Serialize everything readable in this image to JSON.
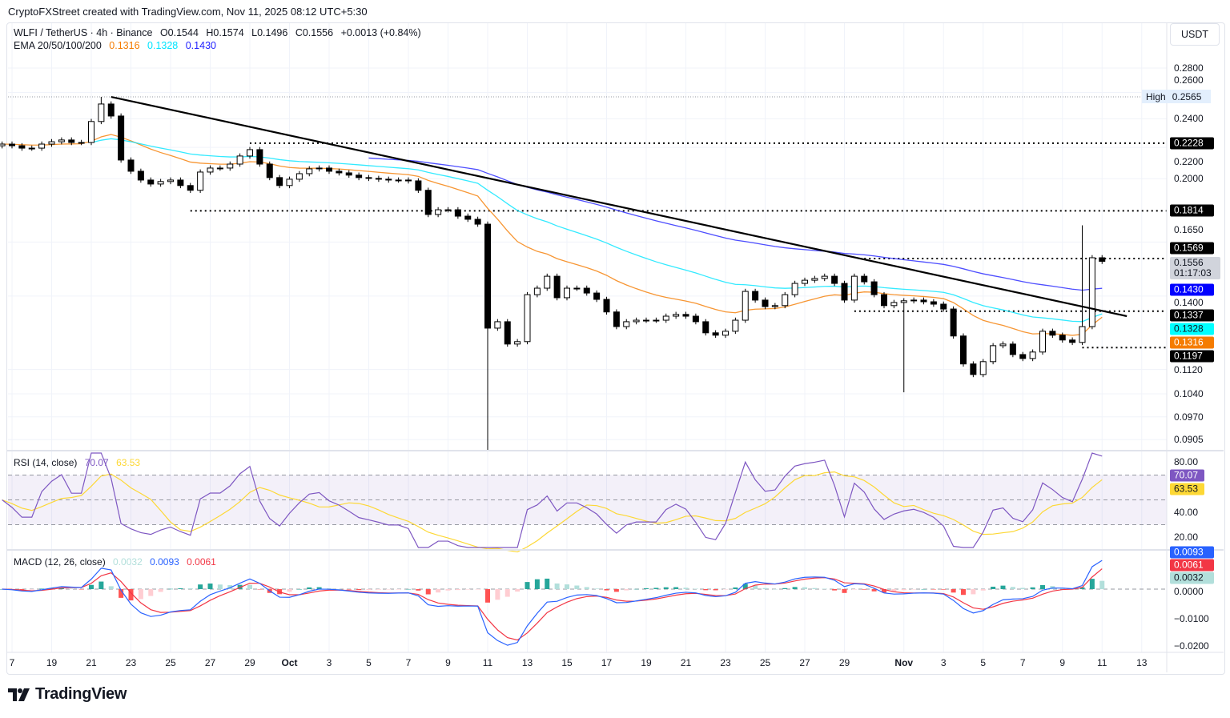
{
  "header": {
    "attribution": "CryptoFXStreet created with TradingView.com, Nov 11, 2025 08:12 UTC+5:30"
  },
  "legend": {
    "symbol": "WLFI / TetherUS · 4h · Binance",
    "open": "O0.1544",
    "high": "H0.1574",
    "low": "L0.1496",
    "close": "C0.1556",
    "change": "+0.0013 (+0.84%)",
    "ema_label": "EMA 20/50/100/200",
    "ema_values": [
      {
        "value": "0.1316",
        "color": "#f57c00"
      },
      {
        "value": "0.1328",
        "color": "#00e5ff"
      },
      {
        "value": "0.1430",
        "color": "#2222ff"
      }
    ]
  },
  "currency_button": "USDT",
  "price_axis": {
    "scale": "log",
    "ticks": [
      "0.2800",
      "0.2600",
      "0.2400",
      "0.2200",
      "0.2000",
      "0.1650",
      "0.1400",
      "0.1120",
      "0.1040",
      "0.0970",
      "0.0905"
    ],
    "high_marker": {
      "label": "High",
      "value": "0.2565"
    },
    "markers": [
      {
        "text": "0.2228",
        "bg": "#000000",
        "fg": "#ffffff"
      },
      {
        "text": "0.1814",
        "bg": "#000000",
        "fg": "#ffffff"
      },
      {
        "text": "0.1569",
        "bg": "#000000",
        "fg": "#ffffff"
      },
      {
        "text": "0.1556",
        "sub": "01:17:03",
        "bg": "#d1d4dc",
        "fg": "#131722"
      },
      {
        "text": "0.1430",
        "bg": "#0000ff",
        "fg": "#ffffff"
      },
      {
        "text": "0.1337",
        "bg": "#000000",
        "fg": "#ffffff"
      },
      {
        "text": "0.1328",
        "bg": "#00ffff",
        "fg": "#131722"
      },
      {
        "text": "0.1316",
        "bg": "#f57c00",
        "fg": "#ffffff"
      },
      {
        "text": "0.1197",
        "bg": "#000000",
        "fg": "#ffffff"
      }
    ]
  },
  "rsi": {
    "label": "RSI (14, close)",
    "value": "70.07",
    "ma_value": "63.53",
    "line_color": "#7e57c2",
    "ma_color": "#fdd835",
    "ticks": [
      "80.00",
      "40.00",
      "20.00"
    ],
    "bands": [
      70,
      50,
      30
    ]
  },
  "macd": {
    "label": "MACD (12, 26, close)",
    "hist_value": "0.0032",
    "macd_value": "0.0093",
    "signal_value": "0.0061",
    "macd_color": "#2962ff",
    "signal_color": "#f23645",
    "hist_up": "#26a69a",
    "hist_up_light": "#b2dfdb",
    "hist_down": "#ff5252",
    "hist_down_light": "#ffcdd2",
    "ticks": [
      "0.0000",
      "−0.0100",
      "−0.0200"
    ]
  },
  "time_axis": {
    "labels": [
      {
        "text": "7",
        "date": "2025-09-17"
      },
      {
        "text": "19",
        "date": "2025-09-19"
      },
      {
        "text": "21",
        "date": "2025-09-21"
      },
      {
        "text": "23",
        "date": "2025-09-23"
      },
      {
        "text": "25",
        "date": "2025-09-25"
      },
      {
        "text": "27",
        "date": "2025-09-27"
      },
      {
        "text": "29",
        "date": "2025-09-29"
      },
      {
        "text": "Oct",
        "date": "2025-10-01",
        "bold": true
      },
      {
        "text": "3",
        "date": "2025-10-03"
      },
      {
        "text": "5",
        "date": "2025-10-05"
      },
      {
        "text": "7",
        "date": "2025-10-07"
      },
      {
        "text": "9",
        "date": "2025-10-09"
      },
      {
        "text": "11",
        "date": "2025-10-11"
      },
      {
        "text": "13",
        "date": "2025-10-13"
      },
      {
        "text": "15",
        "date": "2025-10-15"
      },
      {
        "text": "17",
        "date": "2025-10-17"
      },
      {
        "text": "19",
        "date": "2025-10-19"
      },
      {
        "text": "21",
        "date": "2025-10-21"
      },
      {
        "text": "23",
        "date": "2025-10-23"
      },
      {
        "text": "25",
        "date": "2025-10-25"
      },
      {
        "text": "27",
        "date": "2025-10-27"
      },
      {
        "text": "29",
        "date": "2025-10-29"
      },
      {
        "text": "Nov",
        "date": "2025-11-01",
        "bold": true
      },
      {
        "text": "3",
        "date": "2025-11-03"
      },
      {
        "text": "5",
        "date": "2025-11-05"
      },
      {
        "text": "7",
        "date": "2025-11-07"
      },
      {
        "text": "9",
        "date": "2025-11-09"
      },
      {
        "text": "11",
        "date": "2025-11-11"
      },
      {
        "text": "13",
        "date": "2025-11-13"
      }
    ]
  },
  "logo": {
    "text": "TradingView"
  },
  "chart_data": {
    "type": "candlestick",
    "title": "WLFI / TetherUS · 4h · Binance",
    "y_scale": "log",
    "ylim": [
      0.0875,
      0.295
    ],
    "grid": true,
    "start_time": "2025-09-16T12:00:00Z",
    "sample_interval_hours": 12,
    "closes": [
      0.2222,
      0.2211,
      0.2195,
      0.2195,
      0.2222,
      0.2238,
      0.225,
      0.2233,
      0.2233,
      0.238,
      0.251,
      0.242,
      0.2117,
      0.2046,
      0.1992,
      0.1968,
      0.1983,
      0.1992,
      0.1959,
      0.1931,
      0.2041,
      0.2066,
      0.2066,
      0.2091,
      0.2143,
      0.2185,
      0.2091,
      0.2007,
      0.1959,
      0.1997,
      0.2031,
      0.2061,
      0.2066,
      0.2046,
      0.2036,
      0.2022,
      0.2007,
      0.2002,
      0.1997,
      0.1992,
      0.1992,
      0.1987,
      0.1931,
      0.1794,
      0.182,
      0.182,
      0.1785,
      0.1768,
      0.1742,
      0.127,
      0.1295,
      0.121,
      0.1219,
      0.1406,
      0.1434,
      0.1487,
      0.1393,
      0.1434,
      0.1434,
      0.1413,
      0.1386,
      0.1334,
      0.1276,
      0.1295,
      0.1301,
      0.1301,
      0.1301,
      0.1317,
      0.1324,
      0.1317,
      0.1295,
      0.1252,
      0.1243,
      0.1258,
      0.1301,
      0.142,
      0.1383,
      0.1356,
      0.136,
      0.1406,
      0.1455,
      0.1469,
      0.1477,
      0.1487,
      0.1455,
      0.1383,
      0.1487,
      0.1462,
      0.1406,
      0.136,
      0.1373,
      0.138,
      0.1383,
      0.1376,
      0.1366,
      0.1346,
      0.124,
      0.1139,
      0.1103,
      0.1147,
      0.1204,
      0.121,
      0.1172,
      0.1158,
      0.1181,
      0.1258,
      0.1243,
      0.1225,
      0.1216,
      0.1276,
      0.1573,
      0.1556
    ],
    "extremes": [
      {
        "time": "2025-09-21T12:00:00Z",
        "high": 0.2565
      },
      {
        "time": "2025-10-11T00:00:00Z",
        "low": 0.0875
      },
      {
        "time": "2025-11-10T00:00:00Z",
        "high": 0.1736
      },
      {
        "time": "2025-11-01T00:00:00Z",
        "low": 0.1045
      }
    ],
    "horizontal_levels": [
      {
        "value": 0.2565,
        "style": "dotted-gray",
        "from": "2025-09-16T12:00:00Z"
      },
      {
        "value": 0.2228,
        "style": "dotted",
        "from": "2025-09-29T00:00:00Z"
      },
      {
        "value": 0.1814,
        "style": "dotted",
        "from": "2025-09-26T00:00:00Z"
      },
      {
        "value": 0.1569,
        "style": "dotted",
        "from": "2025-10-30T00:00:00Z"
      },
      {
        "value": 0.1337,
        "style": "dotted",
        "from": "2025-10-29T12:00:00Z"
      },
      {
        "value": 0.1197,
        "style": "dotted",
        "from": "2025-11-10T00:00:00Z"
      }
    ],
    "trendline": {
      "from": {
        "time": "2025-09-22T00:00:00Z",
        "value": 0.2565
      },
      "to": {
        "time": "2025-11-12T06:00:00Z",
        "value": 0.1317
      }
    },
    "ema": [
      {
        "period": 50,
        "color": "#f57c00",
        "last": 0.1316
      },
      {
        "period": 100,
        "color": "#00e5ff",
        "last": 0.1328
      },
      {
        "period": 200,
        "color": "#2222ff",
        "last": 0.143
      }
    ]
  }
}
